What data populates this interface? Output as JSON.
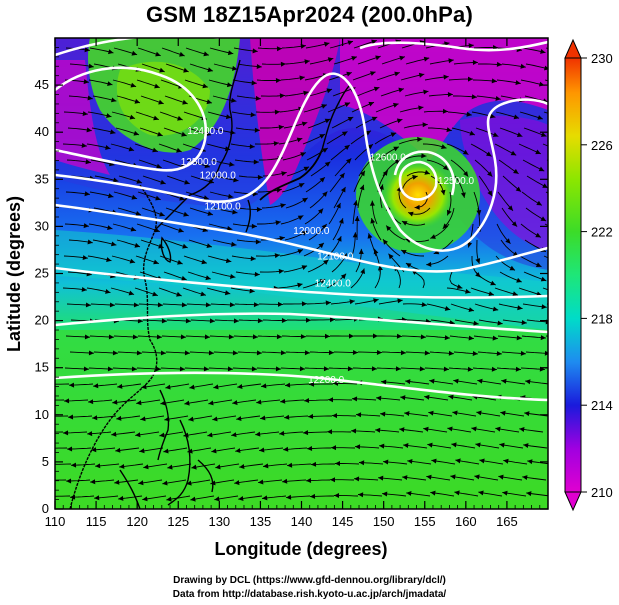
{
  "title": "GSM 18Z15Apr2024 (200.0hPa)",
  "x_axis": {
    "label": "Longitude (degrees)",
    "range": [
      110,
      170
    ],
    "ticks": [
      "110",
      "115",
      "120",
      "125",
      "130",
      "135",
      "140",
      "145",
      "150",
      "155",
      "160",
      "165"
    ]
  },
  "y_axis": {
    "label": "Latitude  (degrees)",
    "range": [
      0,
      50
    ],
    "ticks": [
      "0",
      "5",
      "10",
      "15",
      "20",
      "25",
      "30",
      "35",
      "40",
      "45"
    ]
  },
  "colorbar": {
    "ticks": [
      "210",
      "214",
      "218",
      "222",
      "226",
      "230"
    ],
    "range": [
      210,
      230
    ],
    "colors": [
      "#d400c8",
      "#a000e0",
      "#1a1adc",
      "#1e8cf0",
      "#00dcc8",
      "#1ee678",
      "#3cdc28",
      "#8ce600",
      "#e6dc00",
      "#ff9600",
      "#f03200"
    ]
  },
  "contour_labels": [
    {
      "text": "12400.0",
      "lon": 128.3,
      "lat": 39.8
    },
    {
      "text": "12500.0",
      "lon": 127.5,
      "lat": 36.5
    },
    {
      "text": "12000.0",
      "lon": 129.8,
      "lat": 35.1
    },
    {
      "text": "12100.0",
      "lon": 130.4,
      "lat": 31.8
    },
    {
      "text": "12600.0",
      "lon": 150.5,
      "lat": 37.0
    },
    {
      "text": "12500.0",
      "lon": 158.8,
      "lat": 34.5
    },
    {
      "text": "12000.0",
      "lon": 141.2,
      "lat": 29.2
    },
    {
      "text": "12100.0",
      "lon": 144.1,
      "lat": 26.5
    },
    {
      "text": "12400.0",
      "lon": 143.8,
      "lat": 23.6
    },
    {
      "text": "12200.0",
      "lon": 143.0,
      "lat": 13.4
    }
  ],
  "credits": {
    "line1": "Drawing by DCL (https://www.gfd-dennou.org/library/dcl/)",
    "line2": "Data from http://database.rish.kyoto-u.ac.jp/arch/jmadata/"
  }
}
